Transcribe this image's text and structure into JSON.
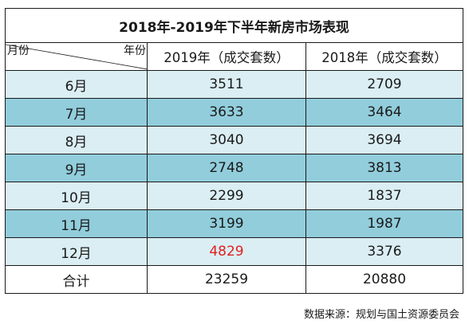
{
  "title": "2018年-2019年下半年新房市场表现",
  "header": {
    "corner_row_label": "月份",
    "corner_col_label": "年份",
    "col_2019": "2019年（成交套数）",
    "col_2018": "2018年（成交套数）"
  },
  "rows": [
    {
      "month": "6月",
      "y2019": "3511",
      "y2018": "2709"
    },
    {
      "month": "7月",
      "y2019": "3633",
      "y2018": "3464"
    },
    {
      "month": "8月",
      "y2019": "3040",
      "y2018": "3694"
    },
    {
      "month": "9月",
      "y2019": "2748",
      "y2018": "3813"
    },
    {
      "month": "10月",
      "y2019": "2299",
      "y2018": "1837"
    },
    {
      "month": "11月",
      "y2019": "3199",
      "y2018": "1987"
    },
    {
      "month": "12月",
      "y2019": "4829",
      "y2018": "3376"
    }
  ],
  "total": {
    "label": "合计",
    "y2019": "23259",
    "y2018": "20880"
  },
  "source": "数据来源：规划与国土资源委员会",
  "colors": {
    "light_row": "#daeef3",
    "dark_row": "#92cddc",
    "highlight": "#e02020"
  }
}
